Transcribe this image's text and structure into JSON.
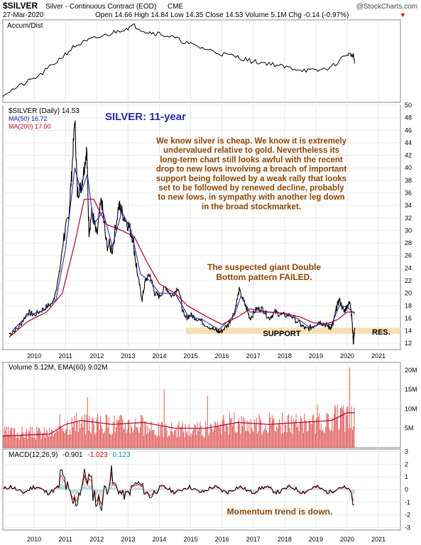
{
  "header": {
    "symbol": "$SILVER",
    "name": "Silver - Continuous Contract (EOD)",
    "exchange": "CME",
    "date": "27-Mar-2020",
    "ohlc": "Open 14.66  High 14.84  Low 14.35  Close 14.53  Volume 5.1M  Chg -0.14 (-0.97%)",
    "chg_arrow": "▼",
    "credit": "@StockCharts.com"
  },
  "accum": {
    "label": "Accum/Dist"
  },
  "price": {
    "legend_symbol": "$SILVER (Daily) 14.53",
    "legend_ma50": "MA(50) 16.72",
    "legend_ma200": "MA(200) 17.00",
    "title": "SILVER: 11-year",
    "commentary": [
      "We know silver is cheap. We know it is extremely",
      "undervalued relative to gold. Nevertheless its",
      "long-term chart still looks awful with the recent",
      "drop to new lows involving a breach of important",
      "support being followed by a weak rally that looks",
      "set to be followed by renewed decline, probably",
      "to new lows, in sympathy with another leg down",
      "in the broad stockmarket."
    ],
    "pattern_note": [
      "The suspected giant Double",
      "Bottom  pattern  FAILED."
    ],
    "support_label": "SUPPORT",
    "resistance_label": "RES."
  },
  "volume": {
    "legend": "Volume 5.12M, EMA(60) 9.02M"
  },
  "macd": {
    "legend_prefix": "MACD(12,26,9)",
    "macd": "-0.901",
    "signal": "-1.023",
    "hist": "0.123",
    "note": "Momentum trend is down."
  },
  "colors": {
    "price_line": "#000000",
    "ma50": "#1a1aa0",
    "ma200": "#b0002a",
    "volume_bar": "#d62a2a",
    "volume_ema": "#b0002a",
    "support_band": "#f8d9a8",
    "commentary": "#8b4500",
    "title": "#2a2aa0",
    "macd_signal": "#e00000",
    "macd_hist": "#1a8aa0"
  },
  "chart_data": {
    "type": "line",
    "x_axis_ticks": [
      "2010",
      "2011",
      "2012",
      "2013",
      "2014",
      "2015",
      "2016",
      "2017",
      "2018",
      "2019",
      "2020",
      "2021"
    ],
    "price": {
      "y_ticks": [
        12,
        14,
        16,
        18,
        20,
        22,
        24,
        26,
        28,
        30,
        32,
        34,
        36,
        38,
        40,
        42,
        44,
        46,
        48,
        50
      ],
      "ylim": [
        11,
        50
      ],
      "support_range": [
        13.5,
        14.5
      ],
      "series": [
        {
          "name": "$SILVER",
          "points": [
            [
              2009.2,
              13.5
            ],
            [
              2009.5,
              14.5
            ],
            [
              2009.8,
              17
            ],
            [
              2010.0,
              16.5
            ],
            [
              2010.3,
              17.5
            ],
            [
              2010.6,
              18.5
            ],
            [
              2010.8,
              23
            ],
            [
              2010.95,
              29
            ],
            [
              2011.1,
              32
            ],
            [
              2011.2,
              39
            ],
            [
              2011.3,
              48
            ],
            [
              2011.38,
              36
            ],
            [
              2011.5,
              37
            ],
            [
              2011.6,
              40
            ],
            [
              2011.68,
              43
            ],
            [
              2011.75,
              30
            ],
            [
              2011.85,
              33
            ],
            [
              2012.0,
              29
            ],
            [
              2012.15,
              35
            ],
            [
              2012.3,
              28
            ],
            [
              2012.5,
              27
            ],
            [
              2012.7,
              34
            ],
            [
              2012.8,
              33
            ],
            [
              2013.0,
              31
            ],
            [
              2013.15,
              29
            ],
            [
              2013.3,
              23
            ],
            [
              2013.45,
              19
            ],
            [
              2013.55,
              22
            ],
            [
              2013.7,
              23
            ],
            [
              2013.85,
              20
            ],
            [
              2014.0,
              19.5
            ],
            [
              2014.2,
              21
            ],
            [
              2014.4,
              19.5
            ],
            [
              2014.6,
              21
            ],
            [
              2014.8,
              16
            ],
            [
              2015.0,
              16.5
            ],
            [
              2015.2,
              16
            ],
            [
              2015.5,
              15
            ],
            [
              2015.8,
              14
            ],
            [
              2015.95,
              13.8
            ],
            [
              2016.2,
              15
            ],
            [
              2016.4,
              17
            ],
            [
              2016.55,
              20.5
            ],
            [
              2016.75,
              18
            ],
            [
              2016.9,
              16
            ],
            [
              2017.1,
              17.5
            ],
            [
              2017.3,
              17.5
            ],
            [
              2017.5,
              16
            ],
            [
              2017.7,
              17
            ],
            [
              2017.9,
              16.5
            ],
            [
              2018.2,
              16.5
            ],
            [
              2018.5,
              15
            ],
            [
              2018.7,
              14.2
            ],
            [
              2018.9,
              14.7
            ],
            [
              2019.1,
              15.5
            ],
            [
              2019.3,
              15
            ],
            [
              2019.45,
              14.5
            ],
            [
              2019.55,
              15
            ],
            [
              2019.65,
              17.5
            ],
            [
              2019.75,
              19
            ],
            [
              2019.9,
              17
            ],
            [
              2020.0,
              18
            ],
            [
              2020.1,
              18.5
            ],
            [
              2020.15,
              16
            ],
            [
              2020.2,
              12
            ],
            [
              2020.24,
              14.5
            ]
          ]
        },
        {
          "name": "MA(50)",
          "points": [
            [
              2009.3,
              14
            ],
            [
              2009.8,
              16.5
            ],
            [
              2010.3,
              17.2
            ],
            [
              2010.7,
              19
            ],
            [
              2011.0,
              27
            ],
            [
              2011.3,
              40
            ],
            [
              2011.5,
              36
            ],
            [
              2011.7,
              39
            ],
            [
              2011.9,
              31
            ],
            [
              2012.2,
              33
            ],
            [
              2012.5,
              27.5
            ],
            [
              2012.8,
              33
            ],
            [
              2013.1,
              30
            ],
            [
              2013.4,
              23
            ],
            [
              2013.7,
              22
            ],
            [
              2014.0,
              20
            ],
            [
              2014.5,
              20
            ],
            [
              2014.9,
              16.5
            ],
            [
              2015.4,
              15.7
            ],
            [
              2015.9,
              14.2
            ],
            [
              2016.4,
              16.5
            ],
            [
              2016.6,
              19.5
            ],
            [
              2016.9,
              17
            ],
            [
              2017.4,
              17
            ],
            [
              2017.9,
              16.8
            ],
            [
              2018.4,
              16
            ],
            [
              2018.8,
              14.5
            ],
            [
              2019.2,
              15.2
            ],
            [
              2019.5,
              15
            ],
            [
              2019.75,
              18
            ],
            [
              2020.0,
              17.8
            ],
            [
              2020.24,
              16.7
            ]
          ]
        },
        {
          "name": "MA(200)",
          "points": [
            [
              2009.2,
              13
            ],
            [
              2009.8,
              15.5
            ],
            [
              2010.4,
              17
            ],
            [
              2010.9,
              20
            ],
            [
              2011.3,
              28
            ],
            [
              2011.6,
              35
            ],
            [
              2011.9,
              35
            ],
            [
              2012.3,
              31
            ],
            [
              2012.8,
              30
            ],
            [
              2013.2,
              29
            ],
            [
              2013.6,
              25
            ],
            [
              2014.0,
              21.5
            ],
            [
              2014.5,
              20
            ],
            [
              2014.9,
              18
            ],
            [
              2015.5,
              16.3
            ],
            [
              2016.0,
              15
            ],
            [
              2016.5,
              16.2
            ],
            [
              2016.9,
              17.5
            ],
            [
              2017.5,
              17
            ],
            [
              2018.0,
              16.8
            ],
            [
              2018.5,
              16.2
            ],
            [
              2018.9,
              15.3
            ],
            [
              2019.3,
              15
            ],
            [
              2019.7,
              15.8
            ],
            [
              2020.0,
              17
            ],
            [
              2020.24,
              17
            ]
          ]
        }
      ]
    },
    "volume": {
      "y_ticks_labels": [
        "5M",
        "10M",
        "15M",
        "20M"
      ],
      "y_ticks_values": [
        5,
        10,
        15,
        20
      ],
      "ylim": [
        0,
        22
      ]
    },
    "macd": {
      "y_ticks": [
        -3,
        -2,
        -1,
        0,
        1,
        2,
        3
      ],
      "ylim": [
        -3.2,
        3.2
      ]
    }
  }
}
